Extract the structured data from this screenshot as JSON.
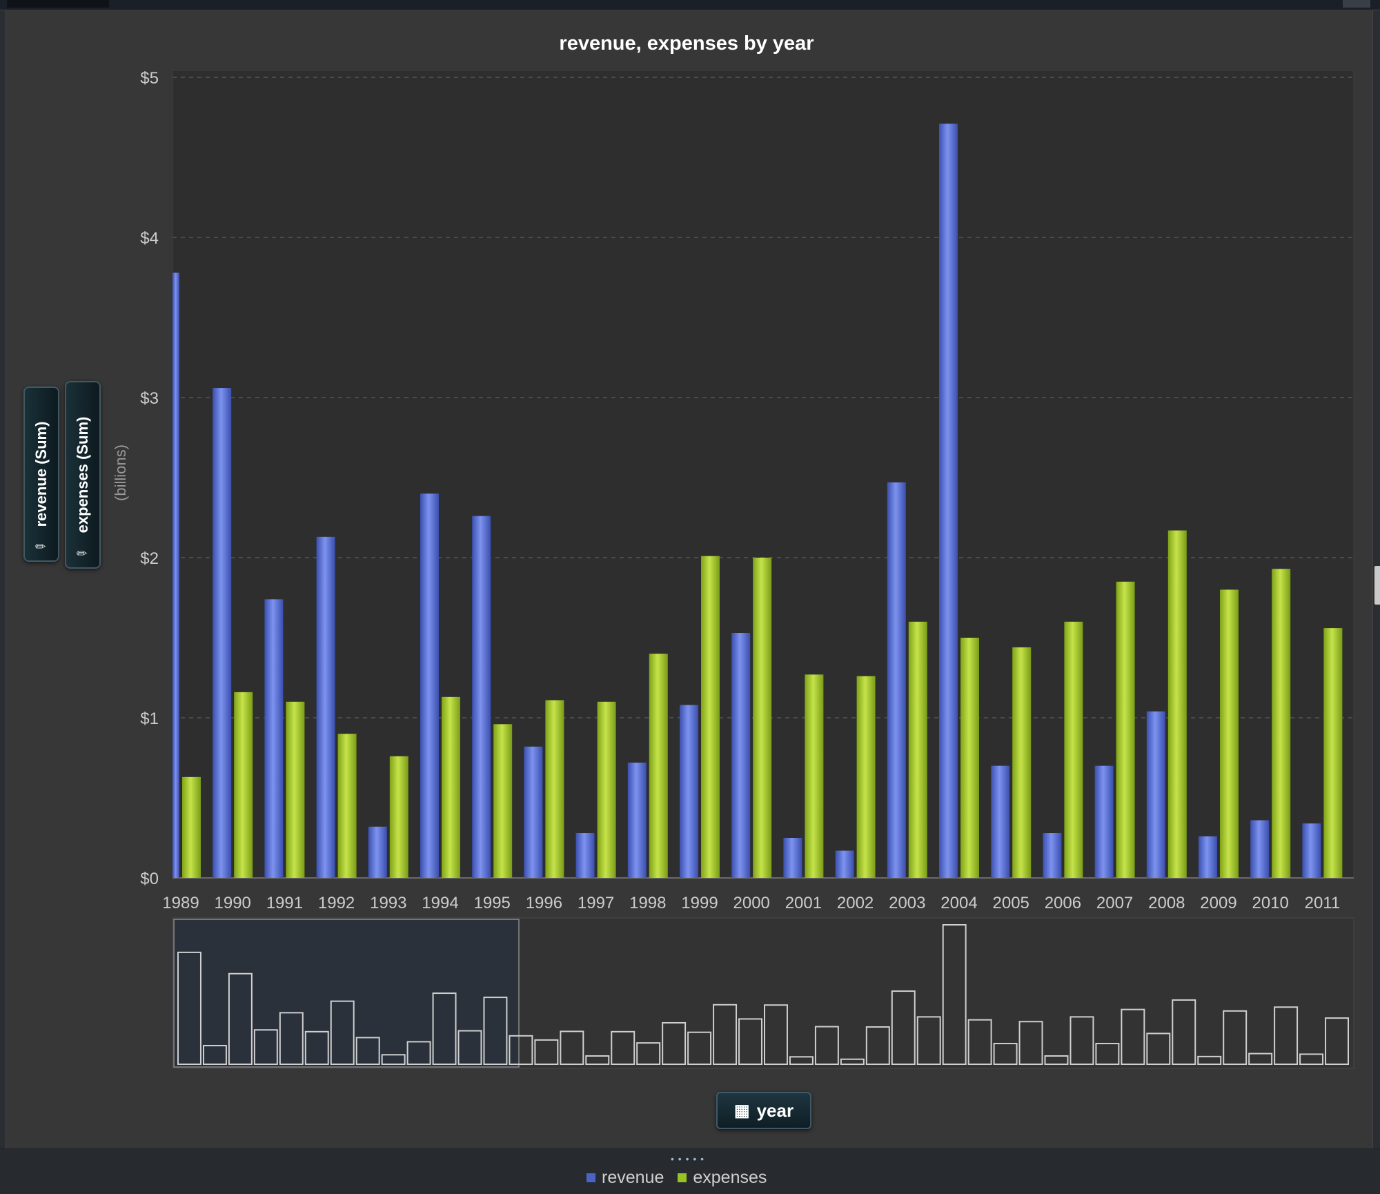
{
  "title": "revenue, expenses by year",
  "y_units": "(billions)",
  "shelf": {
    "measures": [
      {
        "label": "revenue (Sum)",
        "icon": "ruler-icon"
      },
      {
        "label": "expenses (Sum)",
        "icon": "ruler-icon"
      }
    ],
    "dimension": {
      "label": "year",
      "icon": "calendar-icon"
    }
  },
  "legend": [
    {
      "name": "revenue",
      "color": "#4b63c9"
    },
    {
      "name": "expenses",
      "color": "#9bc224"
    }
  ],
  "colors": {
    "revenue": "#4b63c9",
    "expenses": "#9bc224",
    "plot_background": "#2e2e2e"
  },
  "chart_data": {
    "type": "bar",
    "title": "revenue, expenses by year",
    "xlabel": "year",
    "ylabel": "(billions)",
    "ylim": [
      0,
      5
    ],
    "yticks": [
      "$0",
      "$1",
      "$2",
      "$3",
      "$4",
      "$5"
    ],
    "grid": true,
    "legend_position": "bottom",
    "categories": [
      "1989",
      "1990",
      "1991",
      "1992",
      "1993",
      "1994",
      "1995",
      "1996",
      "1997",
      "1998",
      "1999",
      "2000",
      "2001",
      "2002",
      "2003",
      "2004",
      "2005",
      "2006",
      "2007",
      "2008",
      "2009",
      "2010",
      "2011"
    ],
    "series": [
      {
        "name": "revenue",
        "values": [
          3.78,
          3.06,
          1.74,
          2.13,
          0.32,
          2.4,
          2.26,
          0.82,
          0.28,
          0.72,
          1.08,
          1.53,
          0.25,
          0.17,
          2.47,
          4.71,
          0.7,
          0.28,
          0.7,
          1.04,
          0.26,
          0.36,
          0.34
        ]
      },
      {
        "name": "expenses",
        "values": [
          0.63,
          1.16,
          1.1,
          0.9,
          0.76,
          1.13,
          0.96,
          1.11,
          1.1,
          1.4,
          2.01,
          2.0,
          1.27,
          1.26,
          1.6,
          1.5,
          1.44,
          1.6,
          1.85,
          2.17,
          1.8,
          1.93,
          1.56
        ]
      }
    ],
    "overview": {
      "note_visible": false,
      "selection": {
        "from": "1989",
        "to": "1998"
      }
    }
  }
}
